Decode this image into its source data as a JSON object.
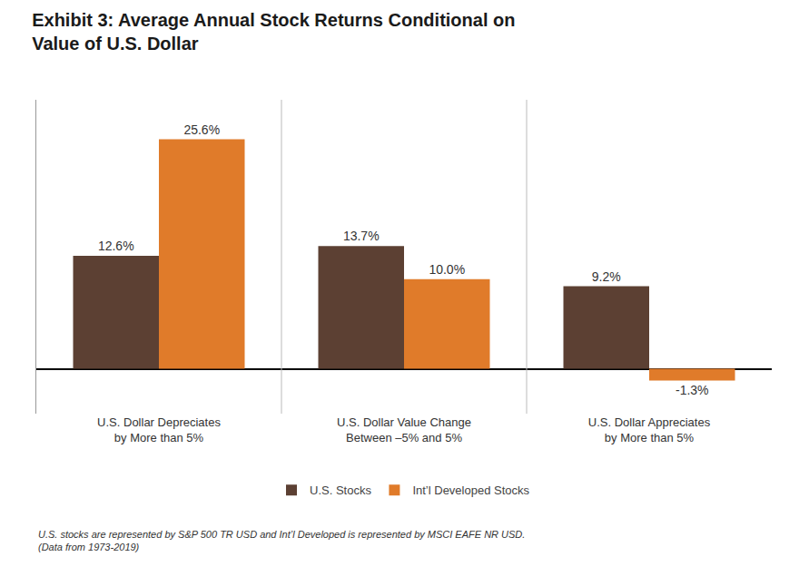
{
  "chart_data": {
    "type": "bar",
    "title": "Exhibit 3: Average Annual Stock Returns Conditional on\nValue of U.S. Dollar",
    "categories": [
      "U.S. Dollar Depreciates\nby More than 5%",
      "U.S. Dollar Value Change\nBetween –5% and 5%",
      "U.S. Dollar Appreciates\nby More than 5%"
    ],
    "series": [
      {
        "name": "U.S. Stocks",
        "color": "#5C4033",
        "values": [
          12.6,
          13.7,
          9.2
        ],
        "value_labels": [
          "12.6%",
          "13.7%",
          "9.2%"
        ]
      },
      {
        "name": "Int’l Developed Stocks",
        "color": "#E07B2A",
        "values": [
          25.6,
          10.0,
          -1.3
        ],
        "value_labels": [
          "25.6%",
          "10.0%",
          "-1.3%"
        ]
      }
    ],
    "ylim": [
      -5,
      30
    ],
    "data_labels": true,
    "tick_labels": "x",
    "grid": false,
    "legend": "bottom",
    "annotations": [
      "U.S. stocks are represented by S&P 500 TR USD and Int’l Developed is represented by MSCI EAFE NR USD.\n(Data from 1973-2019)"
    ]
  }
}
